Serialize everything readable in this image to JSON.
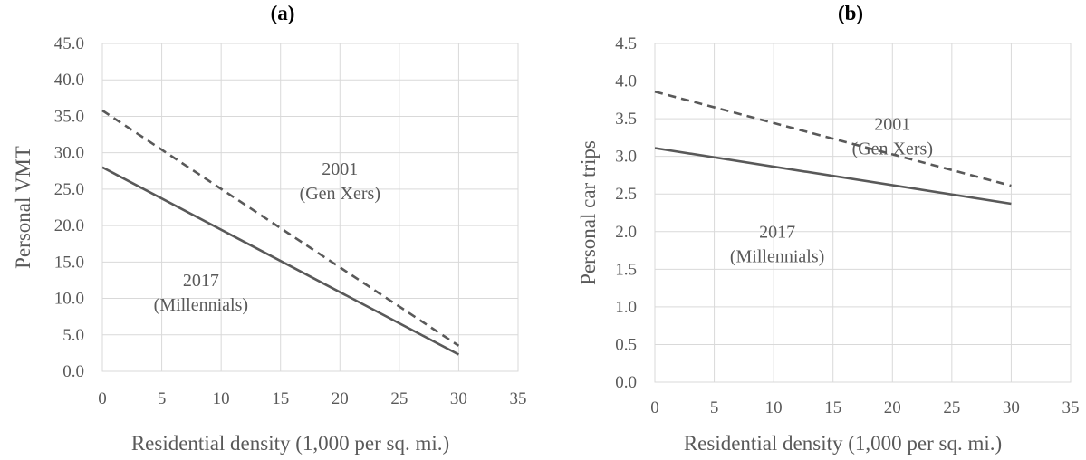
{
  "chart_data": [
    {
      "type": "line",
      "title": "(a)",
      "xlabel": "Residential density (1,000 per sq. mi.)",
      "ylabel": "Personal VMT",
      "xlim": [
        0,
        35
      ],
      "ylim": [
        0,
        45
      ],
      "x_ticks": [
        "0",
        "5",
        "10",
        "15",
        "20",
        "25",
        "30",
        "35"
      ],
      "y_ticks": [
        "0.0",
        "5.0",
        "10.0",
        "15.0",
        "20.0",
        "25.0",
        "30.0",
        "35.0",
        "40.0",
        "45.0"
      ],
      "grid": true,
      "series": [
        {
          "style": "dashed",
          "x": [
            0,
            30
          ],
          "y": [
            35.8,
            3.5
          ]
        },
        {
          "style": "solid",
          "x": [
            0,
            30
          ],
          "y": [
            28.0,
            2.3
          ]
        }
      ],
      "annotations": [
        {
          "lines": [
            "2001",
            "(Gen Xers)"
          ],
          "x": 20.0,
          "y": 27.0
        },
        {
          "lines": [
            "2017",
            "(Millennials)"
          ],
          "x": 8.3,
          "y": 11.7
        }
      ]
    },
    {
      "type": "line",
      "title": "(b)",
      "xlabel": "Residential density (1,000 per sq. mi.)",
      "ylabel": "Personal car trips",
      "xlim": [
        0,
        35
      ],
      "ylim": [
        0,
        4.5
      ],
      "x_ticks": [
        "0",
        "5",
        "10",
        "15",
        "20",
        "25",
        "30",
        "35"
      ],
      "y_ticks": [
        "0.0",
        "0.5",
        "1.0",
        "1.5",
        "2.0",
        "2.5",
        "3.0",
        "3.5",
        "4.0",
        "4.5"
      ],
      "grid": true,
      "series": [
        {
          "style": "dashed",
          "x": [
            0,
            30
          ],
          "y": [
            3.86,
            2.61
          ]
        },
        {
          "style": "solid",
          "x": [
            0,
            30
          ],
          "y": [
            3.11,
            2.37
          ]
        }
      ],
      "annotations": [
        {
          "lines": [
            "2001",
            "(Gen Xers)"
          ],
          "x": 20.0,
          "y": 3.35
        },
        {
          "lines": [
            "2017",
            "(Millennials)"
          ],
          "x": 10.3,
          "y": 1.92
        }
      ]
    }
  ]
}
